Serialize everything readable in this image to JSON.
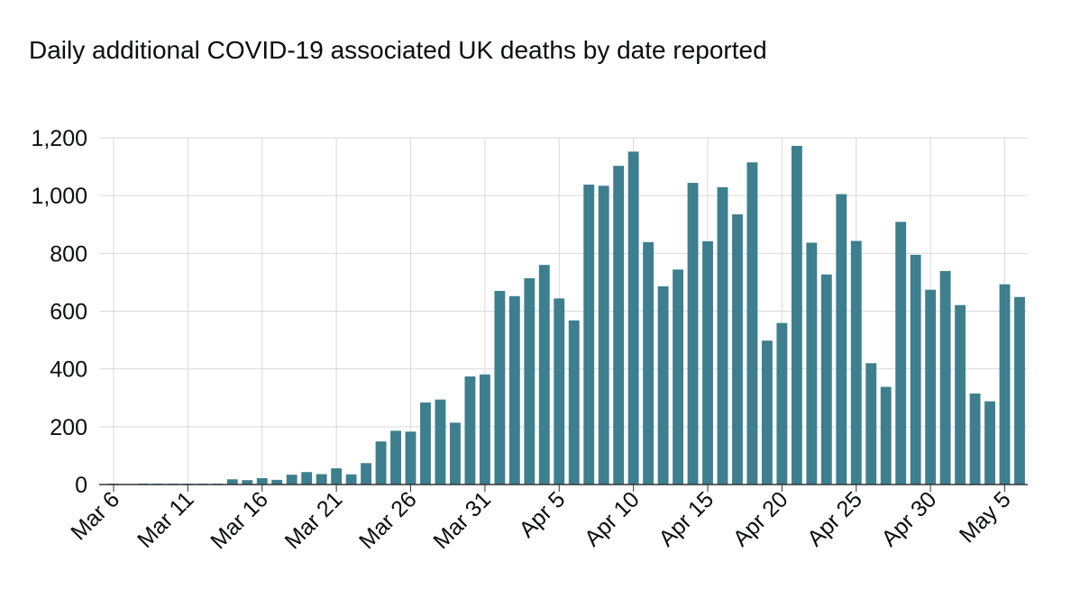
{
  "chart_data": {
    "type": "bar",
    "title": "Daily additional COVID-19 associated UK deaths by date reported",
    "xlabel": "",
    "ylabel": "",
    "ylim": [
      0,
      1200
    ],
    "yticks": [
      0,
      200,
      400,
      600,
      800,
      1000,
      1200
    ],
    "ytick_labels": [
      "0",
      "200",
      "400",
      "600",
      "800",
      "1,000",
      "1,200"
    ],
    "grid": true,
    "bar_color": "#3d7f8e",
    "categories": [
      "Mar 6",
      "Mar 7",
      "Mar 8",
      "Mar 9",
      "Mar 10",
      "Mar 11",
      "Mar 12",
      "Mar 13",
      "Mar 14",
      "Mar 15",
      "Mar 16",
      "Mar 17",
      "Mar 18",
      "Mar 19",
      "Mar 20",
      "Mar 21",
      "Mar 22",
      "Mar 23",
      "Mar 24",
      "Mar 25",
      "Mar 26",
      "Mar 27",
      "Mar 28",
      "Mar 29",
      "Mar 30",
      "Mar 31",
      "Apr 1",
      "Apr 2",
      "Apr 3",
      "Apr 4",
      "Apr 5",
      "Apr 6",
      "Apr 7",
      "Apr 8",
      "Apr 9",
      "Apr 10",
      "Apr 11",
      "Apr 12",
      "Apr 13",
      "Apr 14",
      "Apr 15",
      "Apr 16",
      "Apr 17",
      "Apr 18",
      "Apr 19",
      "Apr 20",
      "Apr 21",
      "Apr 22",
      "Apr 23",
      "Apr 24",
      "Apr 25",
      "Apr 26",
      "Apr 27",
      "Apr 28",
      "Apr 29",
      "Apr 30",
      "May 1",
      "May 2",
      "May 3",
      "May 4",
      "May 5",
      "May 6"
    ],
    "values": [
      1,
      0,
      1,
      1,
      3,
      1,
      2,
      1,
      18,
      15,
      22,
      16,
      34,
      43,
      36,
      56,
      35,
      74,
      149,
      186,
      183,
      284,
      294,
      214,
      374,
      381,
      670,
      652,
      714,
      760,
      644,
      568,
      1038,
      1034,
      1103,
      1152,
      839,
      686,
      744,
      1044,
      842,
      1029,
      935,
      1115,
      498,
      559,
      1172,
      837,
      727,
      1005,
      843,
      420,
      338,
      909,
      795,
      674,
      739,
      621,
      315,
      288,
      693,
      649
    ],
    "xtick_labels": [
      "Mar 6",
      "Mar 11",
      "Mar 16",
      "Mar 21",
      "Mar 26",
      "Mar 31",
      "Apr 5",
      "Apr 10",
      "Apr 15",
      "Apr 20",
      "Apr 25",
      "Apr 30",
      "May 5"
    ]
  }
}
